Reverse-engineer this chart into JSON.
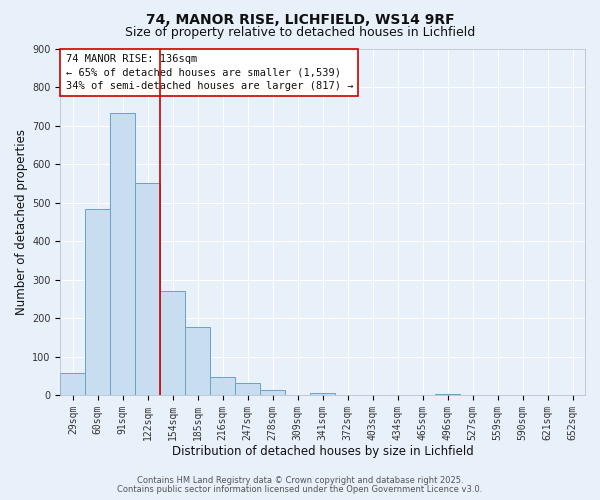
{
  "title": "74, MANOR RISE, LICHFIELD, WS14 9RF",
  "subtitle": "Size of property relative to detached houses in Lichfield",
  "xlabel": "Distribution of detached houses by size in Lichfield",
  "ylabel": "Number of detached properties",
  "categories": [
    "29sqm",
    "60sqm",
    "91sqm",
    "122sqm",
    "154sqm",
    "185sqm",
    "216sqm",
    "247sqm",
    "278sqm",
    "309sqm",
    "341sqm",
    "372sqm",
    "403sqm",
    "434sqm",
    "465sqm",
    "496sqm",
    "527sqm",
    "559sqm",
    "590sqm",
    "621sqm",
    "652sqm"
  ],
  "values": [
    57,
    483,
    733,
    553,
    270,
    177,
    49,
    33,
    14,
    0,
    7,
    0,
    0,
    0,
    0,
    3,
    0,
    0,
    0,
    0,
    0
  ],
  "bar_color": "#c9ddf0",
  "bar_edge_color": "#6aa0c8",
  "vline_x_index": 3,
  "vline_color": "#cc0000",
  "ylim": [
    0,
    900
  ],
  "yticks": [
    0,
    100,
    200,
    300,
    400,
    500,
    600,
    700,
    800,
    900
  ],
  "background_color": "#e8f0fa",
  "grid_color": "#ffffff",
  "annotation_line1": "74 MANOR RISE: 136sqm",
  "annotation_line2": "← 65% of detached houses are smaller (1,539)",
  "annotation_line3": "34% of semi-detached houses are larger (817) →",
  "annotation_box_color": "#ffffff",
  "annotation_box_edge_color": "#cc0000",
  "footer_line1": "Contains HM Land Registry data © Crown copyright and database right 2025.",
  "footer_line2": "Contains public sector information licensed under the Open Government Licence v3.0.",
  "title_fontsize": 10,
  "subtitle_fontsize": 9,
  "axis_label_fontsize": 8.5,
  "tick_fontsize": 7,
  "annotation_fontsize": 7.5,
  "footer_fontsize": 6
}
